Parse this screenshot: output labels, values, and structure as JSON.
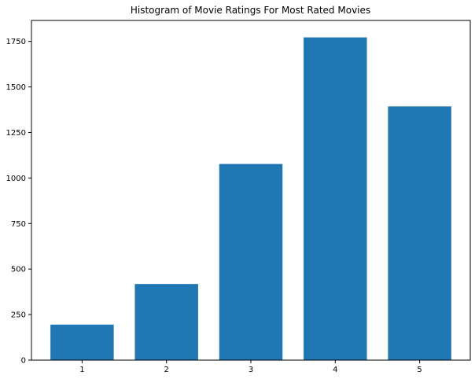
{
  "chart_data": {
    "type": "bar",
    "title": "Histogram of Movie Ratings For Most Rated Movies",
    "xlabel": "",
    "ylabel": "",
    "categories": [
      "1",
      "2",
      "3",
      "4",
      "5"
    ],
    "values": [
      195,
      418,
      1077,
      1772,
      1393
    ],
    "ylim": [
      0,
      1865
    ],
    "yticks": [
      "0",
      "250",
      "500",
      "750",
      "1000",
      "1250",
      "1500",
      "1750"
    ],
    "grid": false,
    "bar_color": "#1f77b4"
  }
}
